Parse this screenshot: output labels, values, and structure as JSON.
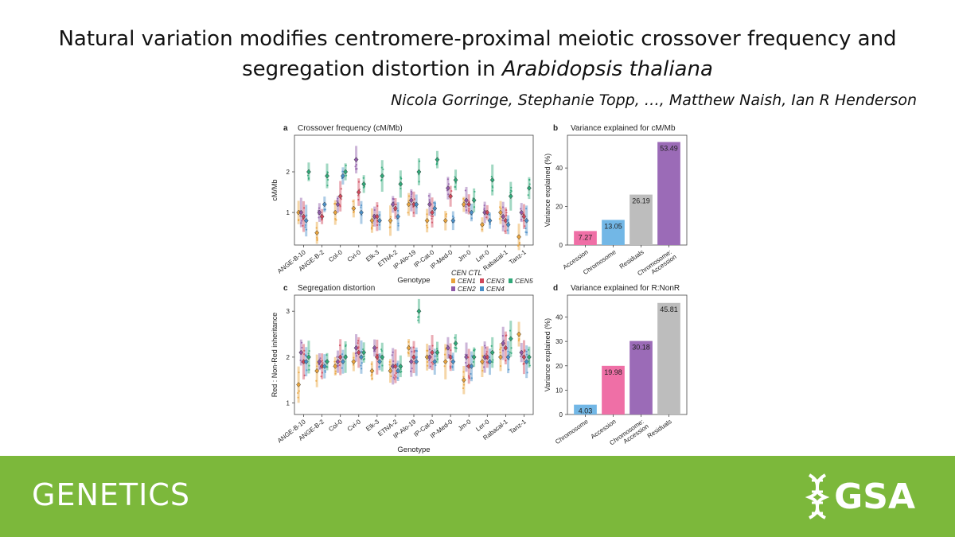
{
  "paper": {
    "title_part1": "Natural variation modifies centromere-proximal meiotic crossover frequency and segregation distortion in ",
    "title_species": "Arabidopsis thaliana",
    "authors": "Nicola Gorringe, Stephanie Topp, …, Matthew Naish, Ian R Henderson"
  },
  "footer": {
    "journal": "GENETICS",
    "logo_text": "GSA",
    "logo_icon": "dna-helix-icon"
  },
  "colors": {
    "band": "#7cb83b",
    "CEN1": "#e8a33c",
    "CEN2": "#8e5aa8",
    "CEN3": "#d0485a",
    "CEN4": "#4a8fc8",
    "CEN5": "#2fa878",
    "gray": "#bdbdbd",
    "pink": "#ef6fa6",
    "blue": "#72b7e6",
    "purple": "#9b6bb7"
  },
  "legend": {
    "title": "CEN CTL",
    "items": [
      "CEN1",
      "CEN2",
      "CEN3",
      "CEN4",
      "CEN5"
    ]
  },
  "genotypes": [
    "ANGE-B-10",
    "ANGE-B-2",
    "Col-0",
    "Cvi-0",
    "Elk-3",
    "ETNA-2",
    "IP-Alo-19",
    "IP-Cat-0",
    "IP-Med-0",
    "Jm-0",
    "Ler-0",
    "Rabacal-1",
    "Tanz-1"
  ],
  "chart_data": [
    {
      "panel": "a",
      "type": "scatter",
      "title": "Crossover frequency (cM/Mb)",
      "xlabel": "Genotype",
      "ylabel": "cM/Mb",
      "yticks": [
        1,
        2
      ],
      "ylim": [
        0.2,
        2.9
      ],
      "series": [
        {
          "name": "CEN1",
          "values": [
            1.0,
            0.5,
            1.0,
            1.1,
            0.8,
            0.8,
            1.2,
            0.8,
            0.8,
            1.2,
            0.7,
            1.0,
            0.4
          ]
        },
        {
          "name": "CEN2",
          "values": [
            1.0,
            1.0,
            1.2,
            2.3,
            0.9,
            1.2,
            1.3,
            1.2,
            1.6,
            1.3,
            1.0,
            0.9,
            1.0
          ]
        },
        {
          "name": "CEN3",
          "values": [
            0.9,
            0.9,
            1.4,
            1.5,
            0.9,
            1.1,
            1.2,
            1.0,
            1.4,
            1.2,
            1.0,
            0.8,
            0.9
          ]
        },
        {
          "name": "CEN4",
          "values": [
            0.8,
            1.2,
            1.9,
            1.0,
            0.8,
            0.9,
            1.2,
            1.1,
            0.8,
            1.0,
            0.8,
            0.7,
            0.8
          ]
        },
        {
          "name": "CEN5",
          "values": [
            2.0,
            1.9,
            2.0,
            1.7,
            1.9,
            1.7,
            2.0,
            2.3,
            1.8,
            1.3,
            1.8,
            1.4,
            1.6
          ]
        }
      ]
    },
    {
      "panel": "b",
      "type": "bar",
      "title": "Variance explained for cM/Mb",
      "ylabel": "Variance explained (%)",
      "yticks": [
        0,
        20,
        40
      ],
      "ylim": [
        0,
        57
      ],
      "categories": [
        "Accession",
        "Chromosome",
        "Residuals",
        "Chromosome:\nAccession"
      ],
      "values": [
        7.27,
        13.05,
        26.19,
        53.49
      ],
      "bar_colors": [
        "pink",
        "blue",
        "gray",
        "purple"
      ]
    },
    {
      "panel": "c",
      "type": "scatter",
      "title": "Segregation distortion",
      "xlabel": "Genotype",
      "ylabel": "Red : Non-Red inheritance",
      "yticks": [
        1,
        2,
        3
      ],
      "ylim": [
        0.75,
        3.35
      ],
      "series": [
        {
          "name": "CEN1",
          "values": [
            1.4,
            1.7,
            1.8,
            1.9,
            1.7,
            1.7,
            2.2,
            2.0,
            1.9,
            1.5,
            1.9,
            2.0,
            2.5
          ]
        },
        {
          "name": "CEN2",
          "values": [
            2.1,
            1.9,
            1.9,
            2.2,
            2.2,
            1.8,
            1.9,
            2.0,
            2.2,
            2.0,
            2.0,
            2.3,
            2.1
          ]
        },
        {
          "name": "CEN3",
          "values": [
            1.9,
            1.8,
            2.0,
            2.1,
            2.0,
            1.8,
            2.0,
            2.1,
            2.0,
            1.8,
            2.0,
            2.2,
            2.0
          ]
        },
        {
          "name": "CEN4",
          "values": [
            1.9,
            1.8,
            1.9,
            2.0,
            1.9,
            1.7,
            1.9,
            1.9,
            1.9,
            1.8,
            1.9,
            2.0,
            1.9
          ]
        },
        {
          "name": "CEN5",
          "values": [
            2.0,
            1.9,
            2.0,
            2.1,
            2.0,
            1.8,
            3.0,
            2.1,
            2.3,
            2.0,
            2.1,
            2.4,
            2.0
          ]
        }
      ]
    },
    {
      "panel": "d",
      "type": "bar",
      "title": "Variance explained for R:NonR",
      "ylabel": "Variance explained (%)",
      "yticks": [
        0,
        10,
        20,
        30,
        40
      ],
      "ylim": [
        0,
        49
      ],
      "categories": [
        "Chromosome",
        "Accession",
        "Chromosome:\nAccession",
        "Residuals"
      ],
      "values": [
        4.03,
        19.98,
        30.18,
        45.81
      ],
      "bar_colors": [
        "blue",
        "pink",
        "purple",
        "gray"
      ]
    }
  ]
}
